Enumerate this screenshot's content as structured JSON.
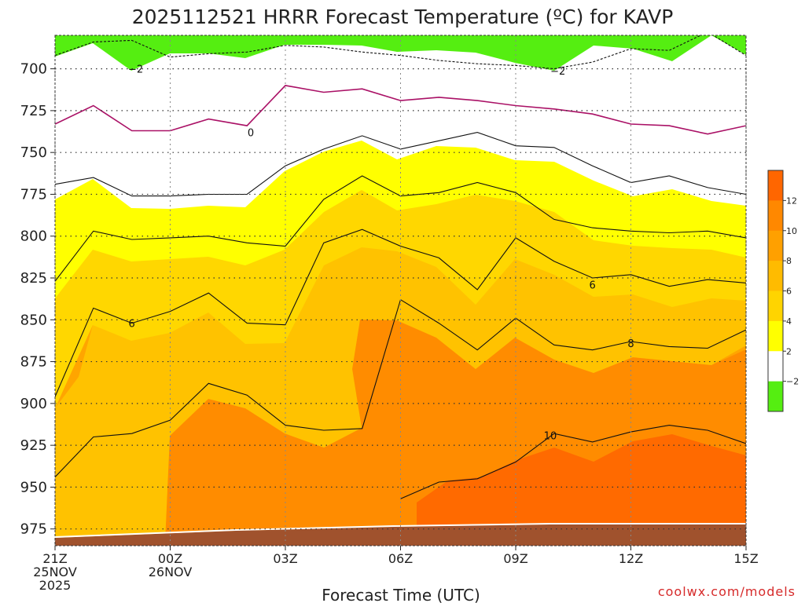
{
  "chart_data": {
    "type": "heatmap",
    "title": "2025112521 HRRR Forecast Temperature (ºC) for KAVP",
    "xlabel": "Forecast Time (UTC)",
    "ylabel": "",
    "credit": "coolwx.com/models",
    "x_range_hours": [
      0,
      18
    ],
    "y_range_hpa": [
      680,
      985
    ],
    "x_ticks": [
      {
        "hour": 0,
        "lines": [
          "21Z",
          "25NOV",
          "2025"
        ]
      },
      {
        "hour": 3,
        "lines": [
          "00Z",
          "26NOV"
        ]
      },
      {
        "hour": 6,
        "lines": [
          "03Z"
        ]
      },
      {
        "hour": 9,
        "lines": [
          "06Z"
        ]
      },
      {
        "hour": 12,
        "lines": [
          "09Z"
        ]
      },
      {
        "hour": 15,
        "lines": [
          "12Z"
        ]
      },
      {
        "hour": 18,
        "lines": [
          "15Z"
        ]
      }
    ],
    "y_ticks": [
      700,
      725,
      750,
      775,
      800,
      825,
      850,
      875,
      900,
      925,
      950,
      975
    ],
    "grid": "dotted",
    "legend": {
      "placement": "right",
      "labels": [
        "12",
        "10",
        "8",
        "6",
        "4",
        "2",
        "−2"
      ],
      "colors": [
        "#ff6600",
        "#ff8800",
        "#ffa000",
        "#ffbb00",
        "#ffd400",
        "#ffff00",
        "#ffffff",
        "#55ee11"
      ]
    },
    "colors": {
      "below_-2": "#55ee11",
      "-2_to_2": "#ffffff",
      "2_to_4": "#ffff00",
      "4_to_6": "#ffd700",
      "6_to_8": "#ffc200",
      "8_to_10": "#ffa500",
      "10_to_12": "#ff8c00",
      "above_12": "#ff6a00",
      "ground": "#a0522d",
      "freezing_line": "#aa1166"
    },
    "isotherms": [
      {
        "value": -2,
        "points": [
          [
            0,
            692
          ],
          [
            1,
            684
          ],
          [
            2,
            683
          ],
          [
            3,
            693
          ],
          [
            4,
            691
          ],
          [
            5,
            690
          ],
          [
            6,
            686
          ],
          [
            7,
            687
          ],
          [
            8,
            690
          ],
          [
            9,
            692
          ],
          [
            10,
            695
          ],
          [
            11,
            697
          ],
          [
            12,
            698
          ],
          [
            13,
            700
          ],
          [
            14,
            696
          ],
          [
            15,
            688
          ],
          [
            16,
            689
          ],
          [
            17,
            678
          ],
          [
            18,
            692
          ]
        ]
      },
      {
        "value": 0,
        "points": [
          [
            0,
            733
          ],
          [
            1,
            722
          ],
          [
            2,
            737
          ],
          [
            3,
            737
          ],
          [
            4,
            730
          ],
          [
            5,
            734
          ],
          [
            6,
            710
          ],
          [
            7,
            714
          ],
          [
            8,
            712
          ],
          [
            9,
            719
          ],
          [
            10,
            717
          ],
          [
            11,
            719
          ],
          [
            12,
            722
          ],
          [
            13,
            724
          ],
          [
            14,
            727
          ],
          [
            15,
            733
          ],
          [
            16,
            734
          ],
          [
            17,
            739
          ],
          [
            18,
            734
          ]
        ]
      },
      {
        "value": 2,
        "points": [
          [
            0,
            769
          ],
          [
            1,
            765
          ],
          [
            2,
            776
          ],
          [
            3,
            776
          ],
          [
            4,
            775
          ],
          [
            5,
            775
          ],
          [
            6,
            758
          ],
          [
            7,
            748
          ],
          [
            8,
            740
          ],
          [
            9,
            748
          ],
          [
            10,
            743
          ],
          [
            11,
            738
          ],
          [
            12,
            746
          ],
          [
            13,
            747
          ],
          [
            14,
            758
          ],
          [
            15,
            768
          ],
          [
            16,
            764
          ],
          [
            17,
            771
          ],
          [
            18,
            775
          ]
        ]
      },
      {
        "value": 4,
        "points": [
          [
            0,
            827
          ],
          [
            1,
            797
          ],
          [
            2,
            802
          ],
          [
            3,
            801
          ],
          [
            4,
            800
          ],
          [
            5,
            804
          ],
          [
            6,
            806
          ],
          [
            7,
            778
          ],
          [
            8,
            764
          ],
          [
            9,
            776
          ],
          [
            10,
            774
          ],
          [
            11,
            768
          ],
          [
            12,
            774
          ],
          [
            13,
            790
          ],
          [
            14,
            795
          ],
          [
            15,
            797
          ],
          [
            16,
            798
          ],
          [
            17,
            797
          ],
          [
            18,
            801
          ]
        ]
      },
      {
        "value": 6,
        "points": [
          [
            0,
            896
          ],
          [
            1,
            843
          ],
          [
            2,
            852
          ],
          [
            3,
            845
          ],
          [
            4,
            834
          ],
          [
            5,
            852
          ],
          [
            6,
            853
          ],
          [
            7,
            804
          ],
          [
            8,
            796
          ],
          [
            9,
            806
          ],
          [
            10,
            813
          ],
          [
            11,
            832
          ],
          [
            12,
            801
          ],
          [
            13,
            815
          ],
          [
            14,
            825
          ],
          [
            15,
            823
          ],
          [
            16,
            830
          ],
          [
            17,
            826
          ],
          [
            18,
            828
          ]
        ]
      },
      {
        "value": 8,
        "points": [
          [
            0,
            944
          ],
          [
            1,
            920
          ],
          [
            2,
            918
          ],
          [
            3,
            910
          ],
          [
            4,
            888
          ],
          [
            5,
            895
          ],
          [
            6,
            913
          ],
          [
            7,
            916
          ],
          [
            8,
            915
          ],
          [
            9,
            838
          ],
          [
            10,
            852
          ],
          [
            11,
            868
          ],
          [
            12,
            849
          ],
          [
            13,
            865
          ],
          [
            14,
            868
          ],
          [
            15,
            863
          ],
          [
            16,
            866
          ],
          [
            17,
            867
          ],
          [
            18,
            856
          ]
        ]
      },
      {
        "value": 10,
        "points": [
          [
            9,
            957
          ],
          [
            10,
            947
          ],
          [
            11,
            945
          ],
          [
            12,
            935
          ],
          [
            13,
            918
          ],
          [
            14,
            923
          ],
          [
            15,
            917
          ],
          [
            16,
            913
          ],
          [
            17,
            916
          ],
          [
            18,
            924
          ]
        ]
      }
    ],
    "contour_labels": [
      {
        "text": "−2",
        "hour": 2.1,
        "hpa": 700
      },
      {
        "text": "−2",
        "hour": 13.1,
        "hpa": 701
      },
      {
        "text": "0",
        "hour": 5.1,
        "hpa": 738
      },
      {
        "text": "6",
        "hour": 2.0,
        "hpa": 852
      },
      {
        "text": "6",
        "hour": 14.0,
        "hpa": 829
      },
      {
        "text": "8",
        "hour": 15.0,
        "hpa": 864
      },
      {
        "text": "10",
        "hour": 12.9,
        "hpa": 919
      }
    ]
  }
}
